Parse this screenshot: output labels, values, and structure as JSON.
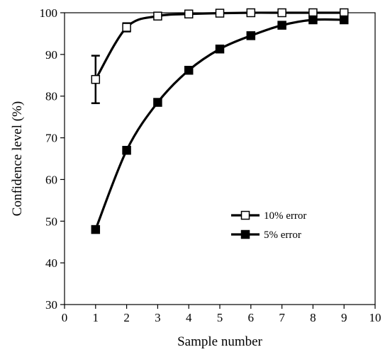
{
  "chart_data": {
    "type": "line",
    "title": "",
    "xlabel": "Sample number",
    "ylabel": "Confidence level (%)",
    "xlim": [
      0,
      10
    ],
    "ylim": [
      30,
      100
    ],
    "x_ticks": [
      0,
      1,
      2,
      3,
      4,
      5,
      6,
      7,
      8,
      9,
      10
    ],
    "y_ticks": [
      30,
      40,
      50,
      60,
      70,
      80,
      90,
      100
    ],
    "grid": false,
    "legend_position": "center-right",
    "series": [
      {
        "name": "10% error",
        "marker": "open-square",
        "color": "#000000",
        "x": [
          1,
          2,
          3,
          4,
          5,
          6,
          7,
          8,
          9
        ],
        "y": [
          84,
          96.5,
          99.2,
          99.7,
          99.9,
          100,
          100,
          100,
          100
        ],
        "error": [
          5.7,
          1.0,
          0,
          0,
          0,
          0,
          0,
          0,
          0
        ]
      },
      {
        "name": "5% error",
        "marker": "filled-square",
        "color": "#000000",
        "x": [
          1,
          2,
          3,
          4,
          5,
          6,
          7,
          8,
          9
        ],
        "y": [
          48,
          67,
          78.5,
          86.2,
          91.3,
          94.5,
          97,
          98.3,
          98.3
        ]
      }
    ]
  }
}
